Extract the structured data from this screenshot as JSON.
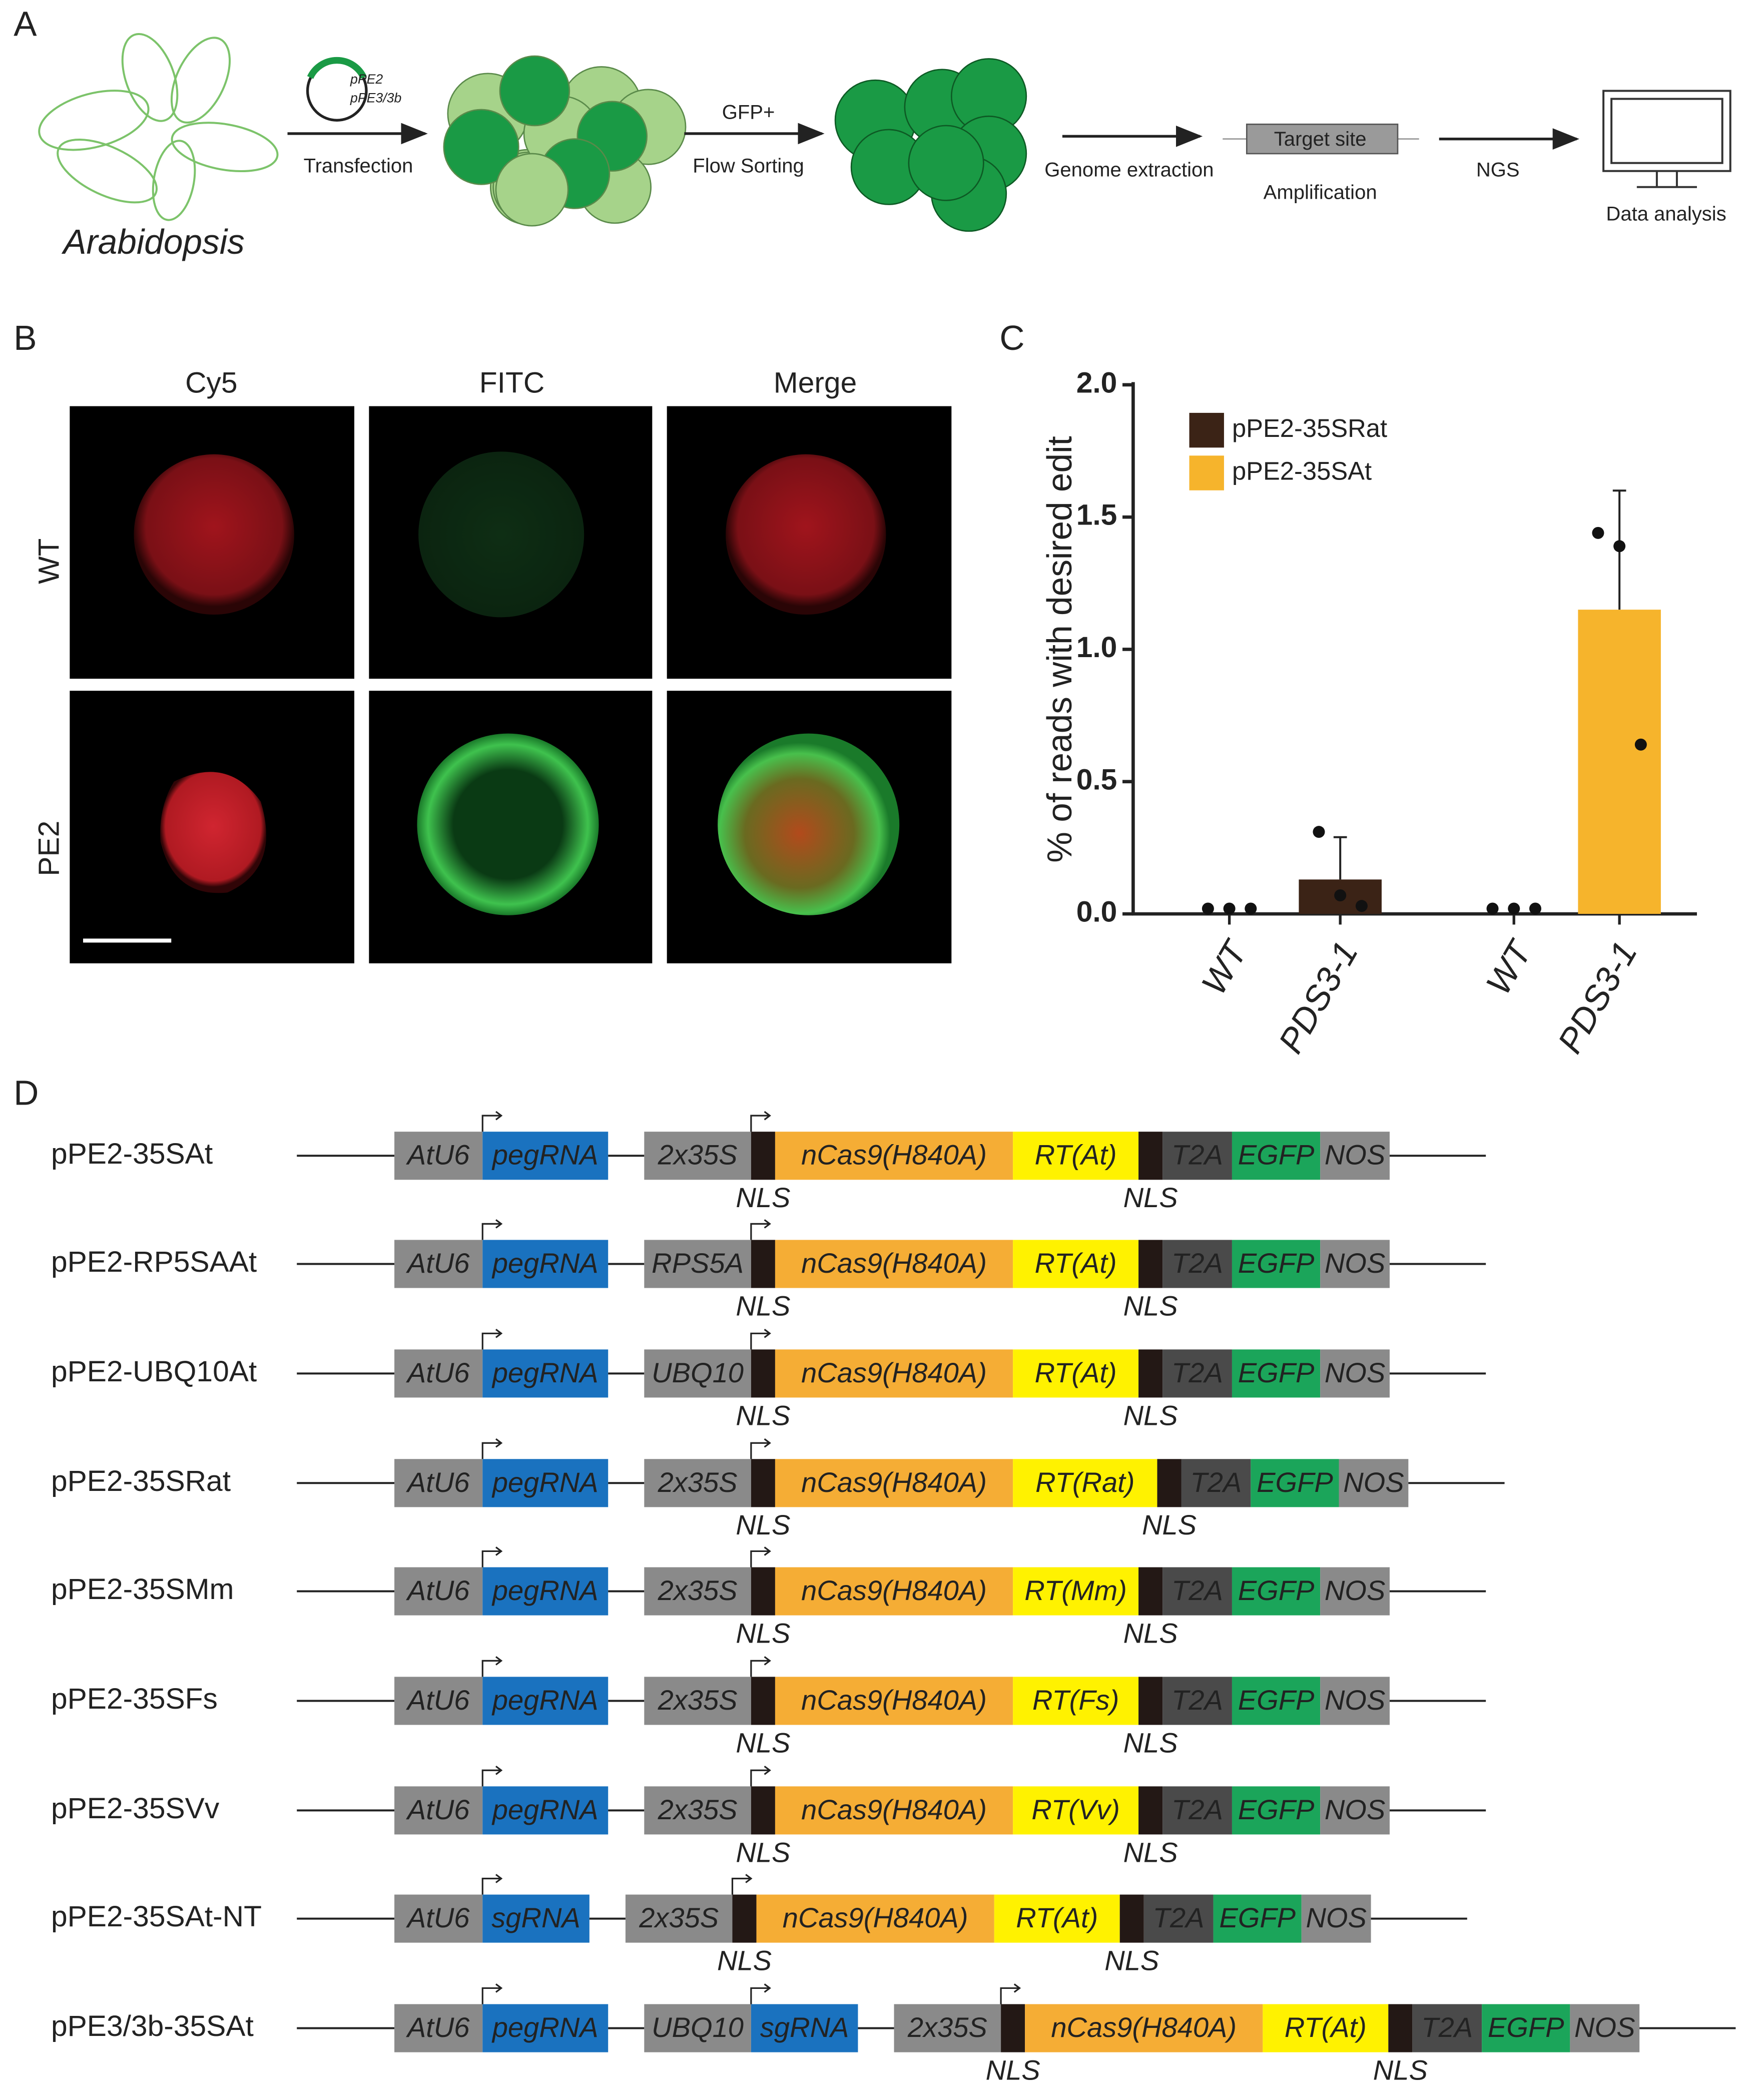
{
  "panels": {
    "a": "A",
    "b": "B",
    "c": "C",
    "d": "D"
  },
  "workflow": {
    "plasmids": [
      "pPE2",
      "pPE3/3b"
    ],
    "transfection": "Transfection",
    "gfp": "GFP+",
    "sorting": "Flow Sorting",
    "genome": "Genome extraction",
    "target": "Target site",
    "amplification": "Amplification",
    "ngs": "NGS",
    "analysis": "Data analysis",
    "plant": "Arabidopsis"
  },
  "imaging": {
    "channels": [
      "Cy5",
      "FITC",
      "Merge"
    ],
    "rows": [
      "WT",
      "PE2"
    ]
  },
  "chart_data": {
    "type": "bar",
    "y_label": "% of reads with desired edit",
    "categories": [
      "WT",
      "PDS3-1",
      "WT",
      "PDS3-1"
    ],
    "series": [
      {
        "name": "pPE2-35SRat",
        "color": "#3b2316",
        "values": [
          0,
          0.13,
          null,
          null
        ],
        "errors": [
          null,
          0.16,
          null,
          null
        ],
        "points": [
          [
            0.02,
            0.02,
            0.02
          ],
          [
            0.31,
            0.07,
            0.03
          ],
          null,
          null
        ]
      },
      {
        "name": "pPE2-35SAt",
        "color": "#f6b42c",
        "values": [
          null,
          null,
          0,
          1.15
        ],
        "errors": [
          null,
          null,
          null,
          0.45
        ],
        "points": [
          null,
          null,
          [
            0.02,
            0.02,
            0.02
          ],
          [
            1.44,
            1.39,
            0.64
          ]
        ]
      }
    ],
    "ylim": [
      0,
      2
    ],
    "yticks": [
      {
        "value": 0,
        "label": "0.0"
      },
      {
        "value": 0.5,
        "label": "0.5"
      },
      {
        "value": 1,
        "label": "1.0"
      },
      {
        "value": 1.5,
        "label": "1.5"
      },
      {
        "value": 2,
        "label": "2.0"
      }
    ],
    "legend": "upper left"
  },
  "constructs": [
    {
      "name": "pPE2-35SAt",
      "units": [
        [
          {
            "text": "AtU6",
            "color": "#8a8a8a"
          },
          {
            "text": "pegRNA",
            "color": "#1a72bf"
          }
        ],
        [
          {
            "text": "2x35S",
            "color": "#8a8a8a"
          },
          {
            "color": "#231815",
            "label": "NLS"
          },
          {
            "text": "nCas9(H840A)",
            "color": "#f5ad35"
          },
          {
            "text": "RT(At)",
            "color": "#fff200"
          },
          {
            "color": "#231815",
            "label": "NLS"
          },
          {
            "text": "T2A",
            "color": "#4a4a4a"
          },
          {
            "text": "EGFP",
            "color": "#1ba55a"
          },
          {
            "text": "NOS",
            "color": "#8a8a8a"
          }
        ]
      ]
    },
    {
      "name": "pPE2-RP5SAAt",
      "units": [
        [
          {
            "text": "AtU6",
            "color": "#8a8a8a"
          },
          {
            "text": "pegRNA",
            "color": "#1a72bf"
          }
        ],
        [
          {
            "text": "RPS5A",
            "color": "#8a8a8a"
          },
          {
            "color": "#231815",
            "label": "NLS"
          },
          {
            "text": "nCas9(H840A)",
            "color": "#f5ad35"
          },
          {
            "text": "RT(At)",
            "color": "#fff200"
          },
          {
            "color": "#231815",
            "label": "NLS"
          },
          {
            "text": "T2A",
            "color": "#4a4a4a"
          },
          {
            "text": "EGFP",
            "color": "#1ba55a"
          },
          {
            "text": "NOS",
            "color": "#8a8a8a"
          }
        ]
      ]
    },
    {
      "name": "pPE2-UBQ10At",
      "units": [
        [
          {
            "text": "AtU6",
            "color": "#8a8a8a"
          },
          {
            "text": "pegRNA",
            "color": "#1a72bf"
          }
        ],
        [
          {
            "text": "UBQ10",
            "color": "#8a8a8a"
          },
          {
            "color": "#231815",
            "label": "NLS"
          },
          {
            "text": "nCas9(H840A)",
            "color": "#f5ad35"
          },
          {
            "text": "RT(At)",
            "color": "#fff200"
          },
          {
            "color": "#231815",
            "label": "NLS"
          },
          {
            "text": "T2A",
            "color": "#4a4a4a"
          },
          {
            "text": "EGFP",
            "color": "#1ba55a"
          },
          {
            "text": "NOS",
            "color": "#8a8a8a"
          }
        ]
      ]
    },
    {
      "name": "pPE2-35SRat",
      "units": [
        [
          {
            "text": "AtU6",
            "color": "#8a8a8a"
          },
          {
            "text": "pegRNA",
            "color": "#1a72bf"
          }
        ],
        [
          {
            "text": "2x35S",
            "color": "#8a8a8a"
          },
          {
            "color": "#231815",
            "label": "NLS"
          },
          {
            "text": "nCas9(H840A)",
            "color": "#f5ad35"
          },
          {
            "text": "RT(Rat)",
            "color": "#fff200"
          },
          {
            "color": "#231815",
            "label": "NLS"
          },
          {
            "text": "T2A",
            "color": "#4a4a4a"
          },
          {
            "text": "EGFP",
            "color": "#1ba55a"
          },
          {
            "text": "NOS",
            "color": "#8a8a8a"
          }
        ]
      ]
    },
    {
      "name": "pPE2-35SMm",
      "units": [
        [
          {
            "text": "AtU6",
            "color": "#8a8a8a"
          },
          {
            "text": "pegRNA",
            "color": "#1a72bf"
          }
        ],
        [
          {
            "text": "2x35S",
            "color": "#8a8a8a"
          },
          {
            "color": "#231815",
            "label": "NLS"
          },
          {
            "text": "nCas9(H840A)",
            "color": "#f5ad35"
          },
          {
            "text": "RT(Mm)",
            "color": "#fff200"
          },
          {
            "color": "#231815",
            "label": "NLS"
          },
          {
            "text": "T2A",
            "color": "#4a4a4a"
          },
          {
            "text": "EGFP",
            "color": "#1ba55a"
          },
          {
            "text": "NOS",
            "color": "#8a8a8a"
          }
        ]
      ]
    },
    {
      "name": "pPE2-35SFs",
      "units": [
        [
          {
            "text": "AtU6",
            "color": "#8a8a8a"
          },
          {
            "text": "pegRNA",
            "color": "#1a72bf"
          }
        ],
        [
          {
            "text": "2x35S",
            "color": "#8a8a8a"
          },
          {
            "color": "#231815",
            "label": "NLS"
          },
          {
            "text": "nCas9(H840A)",
            "color": "#f5ad35"
          },
          {
            "text": "RT(Fs)",
            "color": "#fff200"
          },
          {
            "color": "#231815",
            "label": "NLS"
          },
          {
            "text": "T2A",
            "color": "#4a4a4a"
          },
          {
            "text": "EGFP",
            "color": "#1ba55a"
          },
          {
            "text": "NOS",
            "color": "#8a8a8a"
          }
        ]
      ]
    },
    {
      "name": "pPE2-35SVv",
      "units": [
        [
          {
            "text": "AtU6",
            "color": "#8a8a8a"
          },
          {
            "text": "pegRNA",
            "color": "#1a72bf"
          }
        ],
        [
          {
            "text": "2x35S",
            "color": "#8a8a8a"
          },
          {
            "color": "#231815",
            "label": "NLS"
          },
          {
            "text": "nCas9(H840A)",
            "color": "#f5ad35"
          },
          {
            "text": "RT(Vv)",
            "color": "#fff200"
          },
          {
            "color": "#231815",
            "label": "NLS"
          },
          {
            "text": "T2A",
            "color": "#4a4a4a"
          },
          {
            "text": "EGFP",
            "color": "#1ba55a"
          },
          {
            "text": "NOS",
            "color": "#8a8a8a"
          }
        ]
      ]
    },
    {
      "name": "pPE2-35SAt-NT",
      "units": [
        [
          {
            "text": "AtU6",
            "color": "#8a8a8a"
          },
          {
            "text": "sgRNA",
            "color": "#1a72bf"
          }
        ],
        [
          {
            "text": "2x35S",
            "color": "#8a8a8a"
          },
          {
            "color": "#231815",
            "label": "NLS"
          },
          {
            "text": "nCas9(H840A)",
            "color": "#f5ad35"
          },
          {
            "text": "RT(At)",
            "color": "#fff200"
          },
          {
            "color": "#231815",
            "label": "NLS"
          },
          {
            "text": "T2A",
            "color": "#4a4a4a"
          },
          {
            "text": "EGFP",
            "color": "#1ba55a"
          },
          {
            "text": "NOS",
            "color": "#8a8a8a"
          }
        ]
      ]
    },
    {
      "name": "pPE3/3b-35SAt",
      "units": [
        [
          {
            "text": "AtU6",
            "color": "#8a8a8a"
          },
          {
            "text": "pegRNA",
            "color": "#1a72bf"
          }
        ],
        [
          {
            "text": "UBQ10",
            "color": "#8a8a8a"
          },
          {
            "text": "sgRNA",
            "color": "#1a72bf"
          }
        ],
        [
          {
            "text": "2x35S",
            "color": "#8a8a8a"
          },
          {
            "color": "#231815",
            "label": "NLS"
          },
          {
            "text": "nCas9(H840A)",
            "color": "#f5ad35"
          },
          {
            "text": "RT(At)",
            "color": "#fff200"
          },
          {
            "color": "#231815",
            "label": "NLS"
          },
          {
            "text": "T2A",
            "color": "#4a4a4a"
          },
          {
            "text": "EGFP",
            "color": "#1ba55a"
          },
          {
            "text": "NOS",
            "color": "#8a8a8a"
          }
        ]
      ]
    }
  ]
}
